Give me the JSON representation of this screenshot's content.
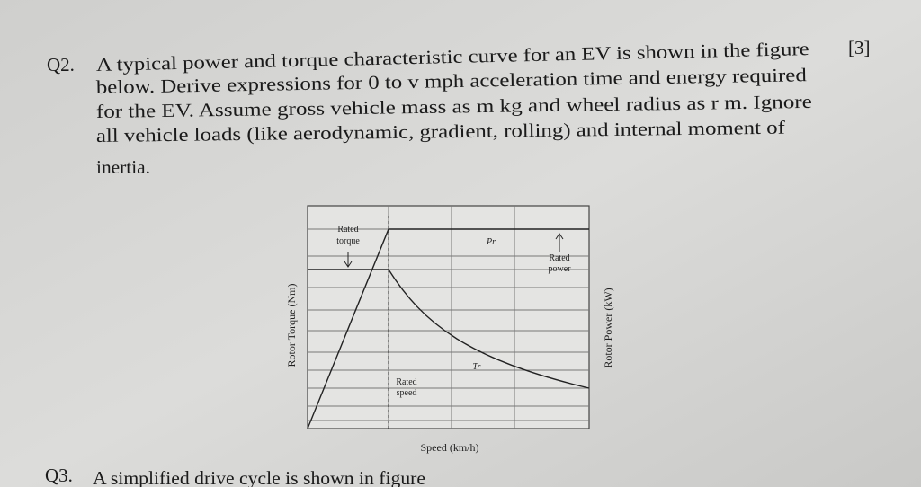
{
  "question2": {
    "number": "Q2.",
    "marks": "[3]",
    "lines": [
      "A typical power and torque characteristic curve for an EV is shown in the figure",
      "below. Derive expressions for 0 to v mph acceleration time and energy required",
      "for the EV. Assume gross vehicle mass as m kg and wheel radius as r m. Ignore",
      "all vehicle loads (like aerodynamic, gradient, rolling) and internal moment of",
      "inertia."
    ]
  },
  "figure": {
    "rated_torque": [
      "Rated",
      "torque"
    ],
    "power_symbol": "Pr",
    "rated_power": [
      "Rated",
      "power"
    ],
    "torque_axis": "Rotor Torque (Nm)",
    "power_axis": "Rotor Power (kW)",
    "torque_symbol": "Tr",
    "rated_speed": [
      "Rated",
      "speed"
    ],
    "speed_axis": "Speed (km/h)"
  },
  "question3": {
    "number": "Q3.",
    "text": "A simplified drive cycle is shown in figure"
  }
}
